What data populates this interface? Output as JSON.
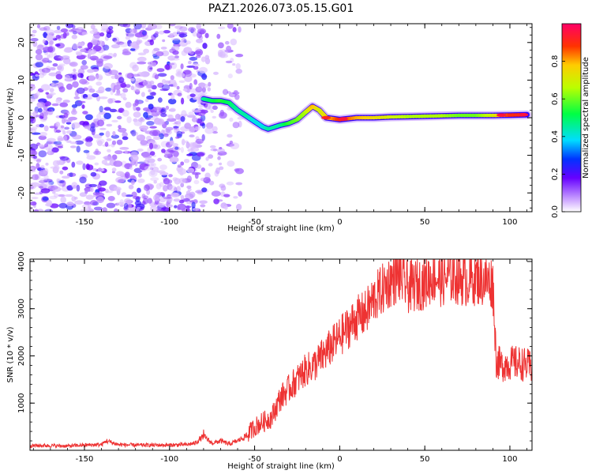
{
  "chart_data": [
    {
      "type": "heatmap",
      "title": "PAZ1.2026.073.05.15.G01",
      "xlabel": "Height of straight line (km)",
      "ylabel": "Frequency (Hz)",
      "xlim": [
        -182,
        113
      ],
      "ylim": [
        -25,
        25
      ],
      "xticks": [
        -150,
        -100,
        -50,
        0,
        50,
        100
      ],
      "yticks": [
        -20,
        -10,
        0,
        10,
        20
      ],
      "colorbar": {
        "label": "Normalized spectral amplitude",
        "range": [
          0,
          1
        ],
        "ticks": [
          0.0,
          0.2,
          0.4,
          0.6,
          0.8
        ],
        "tick_labels": [
          "0.0",
          "0.2",
          "0.4",
          "0.6",
          "0.8"
        ]
      },
      "ridge": [
        {
          "x": -80,
          "f": 5.0,
          "a": 0.45
        },
        {
          "x": -75,
          "f": 4.5,
          "a": 0.5
        },
        {
          "x": -70,
          "f": 4.5,
          "a": 0.55
        },
        {
          "x": -65,
          "f": 4.0,
          "a": 0.5
        },
        {
          "x": -60,
          "f": 2.0,
          "a": 0.45
        },
        {
          "x": -55,
          "f": 0.5,
          "a": 0.45
        },
        {
          "x": -50,
          "f": -1.0,
          "a": 0.4
        },
        {
          "x": -45,
          "f": -2.5,
          "a": 0.4
        },
        {
          "x": -42,
          "f": -3.0,
          "a": 0.45
        },
        {
          "x": -35,
          "f": -2.0,
          "a": 0.45
        },
        {
          "x": -30,
          "f": -1.5,
          "a": 0.55
        },
        {
          "x": -25,
          "f": -0.5,
          "a": 0.6
        },
        {
          "x": -20,
          "f": 1.5,
          "a": 0.65
        },
        {
          "x": -16,
          "f": 3.0,
          "a": 0.8
        },
        {
          "x": -12,
          "f": 2.0,
          "a": 0.7
        },
        {
          "x": -8,
          "f": 0.0,
          "a": 0.75
        },
        {
          "x": 0,
          "f": -0.5,
          "a": 0.9
        },
        {
          "x": 10,
          "f": 0.0,
          "a": 0.8
        },
        {
          "x": 20,
          "f": 0.0,
          "a": 0.75
        },
        {
          "x": 30,
          "f": 0.2,
          "a": 0.7
        },
        {
          "x": 40,
          "f": 0.3,
          "a": 0.65
        },
        {
          "x": 50,
          "f": 0.4,
          "a": 0.65
        },
        {
          "x": 60,
          "f": 0.5,
          "a": 0.65
        },
        {
          "x": 70,
          "f": 0.6,
          "a": 0.6
        },
        {
          "x": 80,
          "f": 0.6,
          "a": 0.6
        },
        {
          "x": 90,
          "f": 0.6,
          "a": 0.7
        },
        {
          "x": 100,
          "f": 0.7,
          "a": 0.9
        },
        {
          "x": 110,
          "f": 0.8,
          "a": 0.9
        }
      ]
    },
    {
      "type": "line",
      "xlabel": "Height of straight line (km)",
      "ylabel": "SNR (10 * v/v)",
      "xlim": [
        -182,
        113
      ],
      "ylim": [
        0,
        4050
      ],
      "xticks": [
        -150,
        -100,
        -50,
        0,
        50,
        100
      ],
      "yticks": [
        1000,
        2000,
        3000,
        4000
      ],
      "line_color": "#ee3333",
      "series": [
        {
          "name": "SNR",
          "x": [
            -182,
            -170,
            -160,
            -150,
            -140,
            -137,
            -130,
            -120,
            -110,
            -100,
            -90,
            -85,
            -80,
            -75,
            -70,
            -65,
            -60,
            -55,
            -50,
            -45,
            -40,
            -35,
            -30,
            -25,
            -20,
            -15,
            -10,
            -5,
            0,
            5,
            10,
            15,
            20,
            25,
            30,
            35,
            40,
            45,
            50,
            55,
            60,
            65,
            70,
            75,
            80,
            85,
            90,
            91,
            92,
            95,
            100,
            105,
            110,
            113
          ],
          "y": [
            100,
            100,
            90,
            110,
            120,
            200,
            120,
            110,
            110,
            110,
            120,
            150,
            300,
            150,
            200,
            130,
            200,
            300,
            500,
            600,
            700,
            1100,
            1300,
            1500,
            1700,
            1800,
            2000,
            2200,
            2400,
            2600,
            2800,
            2900,
            3200,
            3400,
            3600,
            3700,
            3450,
            3500,
            3550,
            3700,
            3600,
            3700,
            3650,
            3600,
            3650,
            3600,
            3550,
            2700,
            1900,
            1800,
            1850,
            1850,
            1800,
            1750
          ]
        }
      ]
    }
  ]
}
